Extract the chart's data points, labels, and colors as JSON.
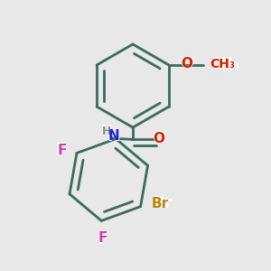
{
  "background_color": "#e8e8e8",
  "bond_color": "#3a6b5c",
  "bond_width": 2.0,
  "atom_colors": {
    "O": "#cc2200",
    "N": "#2222cc",
    "H": "#888888",
    "Br": "#b8860b",
    "F": "#cc44aa",
    "C": "#3a6b5c"
  },
  "figsize": [
    3.0,
    3.0
  ],
  "dpi": 100
}
